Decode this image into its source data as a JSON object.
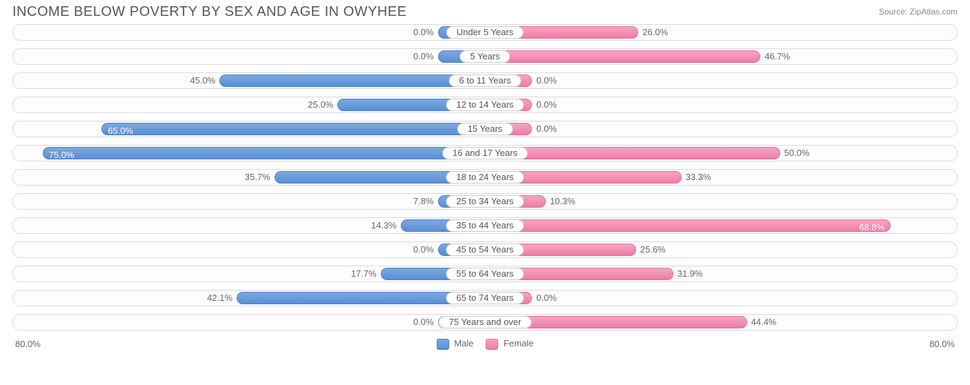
{
  "title": "INCOME BELOW POVERTY BY SEX AND AGE IN OWYHEE",
  "source": "Source: ZipAtlas.com",
  "type": "diverging-bar",
  "axis_max": 80.0,
  "axis_label_left": "80.0%",
  "axis_label_right": "80.0%",
  "min_bar_pct": 10.0,
  "colors": {
    "male_fill_top": "#7ba8e0",
    "male_fill_bot": "#5a8fd6",
    "male_border": "#4a7fc6",
    "female_fill_top": "#f6a6c1",
    "female_fill_bot": "#ef7ba6",
    "female_border": "#e76a97",
    "row_border": "#d9d9d9",
    "text": "#666666",
    "title_text": "#555555",
    "background": "#ffffff"
  },
  "legend": {
    "male": "Male",
    "female": "Female"
  },
  "label_fontsize": 13,
  "title_fontsize": 20,
  "rows": [
    {
      "category": "Under 5 Years",
      "male": 0.0,
      "male_label": "0.0%",
      "female": 26.0,
      "female_label": "26.0%"
    },
    {
      "category": "5 Years",
      "male": 0.0,
      "male_label": "0.0%",
      "female": 46.7,
      "female_label": "46.7%"
    },
    {
      "category": "6 to 11 Years",
      "male": 45.0,
      "male_label": "45.0%",
      "female": 0.0,
      "female_label": "0.0%"
    },
    {
      "category": "12 to 14 Years",
      "male": 25.0,
      "male_label": "25.0%",
      "female": 0.0,
      "female_label": "0.0%"
    },
    {
      "category": "15 Years",
      "male": 65.0,
      "male_label": "65.0%",
      "female": 0.0,
      "female_label": "0.0%"
    },
    {
      "category": "16 and 17 Years",
      "male": 75.0,
      "male_label": "75.0%",
      "female": 50.0,
      "female_label": "50.0%"
    },
    {
      "category": "18 to 24 Years",
      "male": 35.7,
      "male_label": "35.7%",
      "female": 33.3,
      "female_label": "33.3%"
    },
    {
      "category": "25 to 34 Years",
      "male": 7.8,
      "male_label": "7.8%",
      "female": 10.3,
      "female_label": "10.3%"
    },
    {
      "category": "35 to 44 Years",
      "male": 14.3,
      "male_label": "14.3%",
      "female": 68.8,
      "female_label": "68.8%"
    },
    {
      "category": "45 to 54 Years",
      "male": 0.0,
      "male_label": "0.0%",
      "female": 25.6,
      "female_label": "25.6%"
    },
    {
      "category": "55 to 64 Years",
      "male": 17.7,
      "male_label": "17.7%",
      "female": 31.9,
      "female_label": "31.9%"
    },
    {
      "category": "65 to 74 Years",
      "male": 42.1,
      "male_label": "42.1%",
      "female": 0.0,
      "female_label": "0.0%"
    },
    {
      "category": "75 Years and over",
      "male": 0.0,
      "male_label": "0.0%",
      "female": 44.4,
      "female_label": "44.4%"
    }
  ]
}
